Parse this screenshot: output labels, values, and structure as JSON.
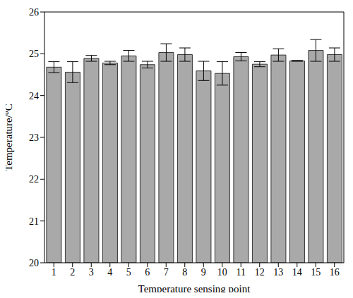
{
  "chart_data": {
    "type": "bar",
    "x_label": "Temperature sensing point",
    "y_label": "Temperature/°C",
    "categories": [
      "1",
      "2",
      "3",
      "4",
      "5",
      "6",
      "7",
      "8",
      "9",
      "10",
      "11",
      "12",
      "13",
      "14",
      "15",
      "16"
    ],
    "values": [
      24.68,
      24.56,
      24.89,
      24.78,
      24.95,
      24.74,
      25.03,
      24.98,
      24.59,
      24.53,
      24.93,
      24.75,
      24.97,
      24.83,
      25.08,
      24.98
    ],
    "error": [
      0.13,
      0.25,
      0.07,
      0.04,
      0.13,
      0.08,
      0.21,
      0.16,
      0.23,
      0.28,
      0.1,
      0.06,
      0.15,
      0.01,
      0.26,
      0.16
    ],
    "color": "#a9a9a9",
    "ylim": [
      20,
      26
    ],
    "yticks": [
      20,
      21,
      22,
      23,
      24,
      25,
      26
    ],
    "grid": false
  }
}
